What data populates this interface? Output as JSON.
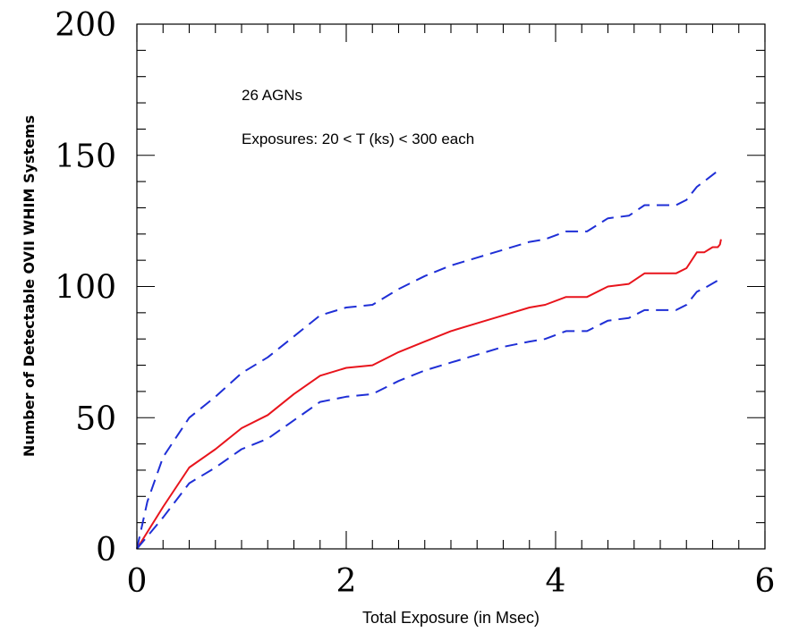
{
  "chart_data": {
    "type": "line",
    "xlabel": "Total Exposure (in Msec)",
    "ylabel": "Number of Detectable OVII WHIM Systems",
    "xlim": [
      0,
      6
    ],
    "ylim": [
      0,
      200
    ],
    "x_ticks": [
      0,
      2,
      4,
      6
    ],
    "y_ticks": [
      0,
      50,
      100,
      150,
      200
    ],
    "x_minor_step": 0.25,
    "y_minor_step": 10,
    "grid": false,
    "annotations": [
      "26 AGNs",
      "Exposures: 20 < T (ks) < 300 each"
    ],
    "colors": {
      "median": "#e8141c",
      "bound": "#1f2fd6",
      "axis": "#000000"
    },
    "series": [
      {
        "style": "solid",
        "color": "#e8141c",
        "x": [
          0,
          0.25,
          0.5,
          0.75,
          1.0,
          1.25,
          1.5,
          1.75,
          2.0,
          2.25,
          2.5,
          2.75,
          3.0,
          3.25,
          3.5,
          3.75,
          3.9,
          4.1,
          4.3,
          4.5,
          4.7,
          4.85,
          5.0,
          5.15,
          5.25,
          5.35,
          5.42,
          5.5,
          5.55,
          5.57,
          5.58
        ],
        "y": [
          0,
          16,
          31,
          38,
          46,
          51,
          59,
          66,
          69,
          70,
          75,
          79,
          83,
          86,
          89,
          92,
          93,
          96,
          96,
          100,
          101,
          105,
          105,
          105,
          107,
          113,
          113,
          115,
          115,
          116,
          118
        ]
      },
      {
        "style": "dashed",
        "color": "#1f2fd6",
        "x": [
          0,
          0.1,
          0.25,
          0.5,
          0.75,
          1.0,
          1.25,
          1.5,
          1.75,
          2.0,
          2.25,
          2.5,
          2.75,
          3.0,
          3.25,
          3.5,
          3.75,
          3.9,
          4.1,
          4.3,
          4.5,
          4.7,
          4.85,
          5.0,
          5.15,
          5.25,
          5.35,
          5.45,
          5.58
        ],
        "y": [
          0,
          18,
          35,
          50,
          58,
          67,
          73,
          81,
          89,
          92,
          93,
          99,
          104,
          108,
          111,
          114,
          117,
          118,
          121,
          121,
          126,
          127,
          131,
          131,
          131,
          133,
          138,
          141,
          145
        ]
      },
      {
        "style": "dashed",
        "color": "#1f2fd6",
        "x": [
          0,
          0.25,
          0.5,
          0.75,
          1.0,
          1.25,
          1.5,
          1.75,
          2.0,
          2.25,
          2.5,
          2.75,
          3.0,
          3.25,
          3.5,
          3.75,
          3.9,
          4.1,
          4.3,
          4.5,
          4.7,
          4.85,
          5.0,
          5.15,
          5.25,
          5.35,
          5.45,
          5.58
        ],
        "y": [
          0,
          12,
          25,
          31,
          38,
          42,
          49,
          56,
          58,
          59,
          64,
          68,
          71,
          74,
          77,
          79,
          80,
          83,
          83,
          87,
          88,
          91,
          91,
          91,
          93,
          98,
          100,
          103
        ]
      }
    ]
  }
}
